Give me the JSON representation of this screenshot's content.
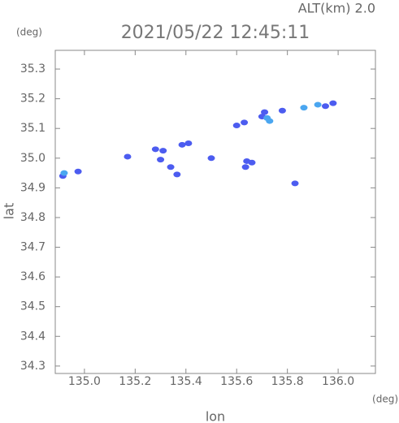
{
  "chart_data": {
    "type": "scatter",
    "title": "2021/05/22 12:45:11",
    "subtitle": "ALT(km) 2.0",
    "x_label": "lon",
    "x_unit": "(deg)",
    "y_label": "lat",
    "y_unit": "(deg)",
    "xlim": [
      134.885,
      136.147
    ],
    "ylim": [
      34.275,
      35.363
    ],
    "xticks": [
      {
        "value": 135.0,
        "label": "135.0"
      },
      135.2,
      135.4,
      135.6,
      135.8,
      {
        "value": 136.0,
        "label": "136.0"
      }
    ],
    "yticks": [
      34.3,
      34.4,
      34.5,
      34.6,
      34.7,
      34.8,
      34.9,
      {
        "value": 35.0,
        "label": "35.0"
      },
      35.1,
      35.2,
      35.3
    ],
    "series": [
      {
        "color": "#4c5cf0",
        "x": [
          134.915,
          134.975,
          135.17,
          135.28,
          135.31,
          135.3,
          135.34,
          135.365,
          135.385,
          135.41,
          135.5,
          135.6,
          135.63,
          135.64,
          135.66,
          135.635,
          135.7,
          135.71,
          135.78,
          135.83,
          135.95,
          135.98
        ],
        "y": [
          34.94,
          34.955,
          35.005,
          35.03,
          35.025,
          34.995,
          34.97,
          34.945,
          35.045,
          35.05,
          35.0,
          35.11,
          35.12,
          34.99,
          34.985,
          34.97,
          35.14,
          35.155,
          35.16,
          34.915,
          35.175,
          35.185
        ]
      },
      {
        "color": "#4aa6f0",
        "x": [
          134.92,
          135.72,
          135.73,
          135.865,
          135.92
        ],
        "y": [
          34.95,
          35.135,
          35.125,
          35.17,
          35.18
        ]
      }
    ]
  }
}
